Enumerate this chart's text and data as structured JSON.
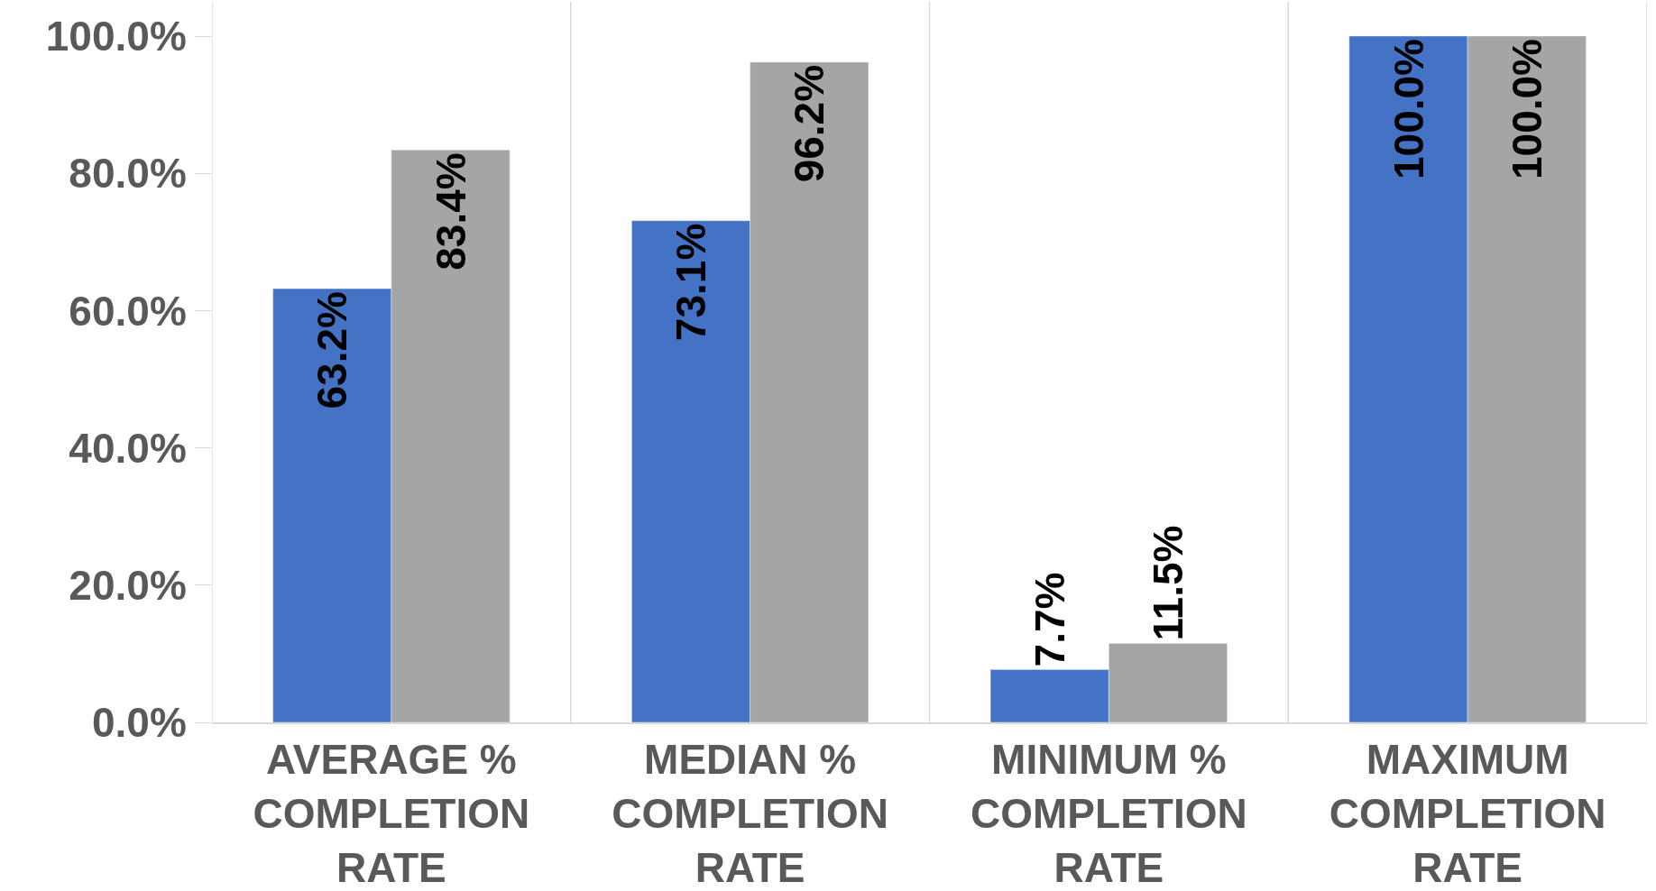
{
  "chart_data": {
    "type": "bar",
    "categories": [
      "AVERAGE %\nCOMPLETION\nRATE",
      "MEDIAN %\nCOMPLETION\nRATE",
      "MINIMUM %\nCOMPLETION\nRATE",
      "MAXIMUM\nCOMPLETION\nRATE"
    ],
    "series": [
      {
        "color": "#4472c4",
        "values": [
          63.2,
          73.1,
          7.7,
          100.0
        ]
      },
      {
        "color": "#a5a5a5",
        "values": [
          83.4,
          96.2,
          11.5,
          100.0
        ]
      }
    ],
    "ylim": [
      0,
      100
    ],
    "yticks": [
      {
        "value": 0,
        "label": "0.0%"
      },
      {
        "value": 20,
        "label": "20.0%"
      },
      {
        "value": 40,
        "label": "40.0%"
      },
      {
        "value": 60,
        "label": "60.0%"
      },
      {
        "value": 80,
        "label": "80.0%"
      },
      {
        "value": 100,
        "label": "100.0%"
      }
    ],
    "grid": "x",
    "legend": false,
    "value_labels": [
      [
        "63.2%",
        "73.1%",
        "7.7%",
        "100.0%"
      ],
      [
        "83.4%",
        "96.2%",
        "11.5%",
        "100.0%"
      ]
    ]
  }
}
